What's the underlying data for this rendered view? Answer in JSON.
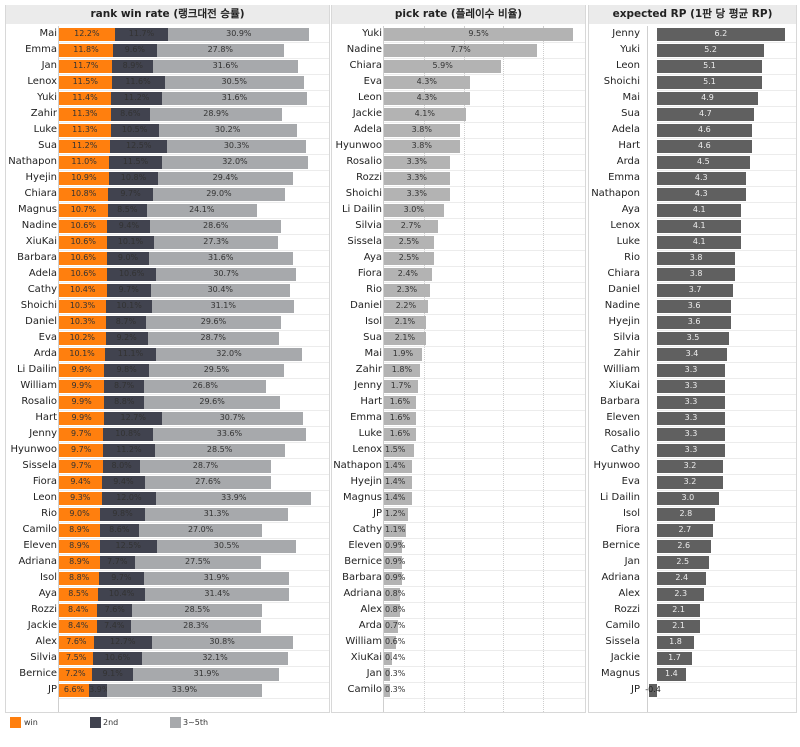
{
  "legend": [
    {
      "label": "win",
      "color": "#ff7f0e"
    },
    {
      "label": "2nd",
      "color": "#41434f"
    },
    {
      "label": "3~5th",
      "color": "#a7a9ac"
    }
  ],
  "chart_data": [
    {
      "type": "bar",
      "orientation": "horizontal",
      "stacked": true,
      "title": "rank win rate (랭크대전 승률)",
      "categories": [
        "Mai",
        "Emma",
        "Jan",
        "Lenox",
        "Yuki",
        "Zahir",
        "Luke",
        "Sua",
        "Nathapon",
        "Hyejin",
        "Chiara",
        "Magnus",
        "Nadine",
        "XiuKai",
        "Barbara",
        "Adela",
        "Cathy",
        "Shoichi",
        "Daniel",
        "Eva",
        "Arda",
        "Li Dailin",
        "William",
        "Rosalio",
        "Hart",
        "Jenny",
        "Hyunwoo",
        "Sissela",
        "Fiora",
        "Leon",
        "Rio",
        "Camilo",
        "Eleven",
        "Adriana",
        "Isol",
        "Aya",
        "Rozzi",
        "Jackie",
        "Alex",
        "Silvia",
        "Bernice",
        "JP"
      ],
      "series": [
        {
          "name": "win",
          "color": "#ff7f0e",
          "values": [
            12.2,
            11.8,
            11.7,
            11.5,
            11.4,
            11.3,
            11.3,
            11.2,
            11.0,
            10.9,
            10.8,
            10.7,
            10.6,
            10.6,
            10.6,
            10.6,
            10.4,
            10.3,
            10.3,
            10.2,
            10.1,
            9.9,
            9.9,
            9.9,
            9.9,
            9.7,
            9.7,
            9.7,
            9.4,
            9.3,
            9.0,
            8.9,
            8.9,
            8.9,
            8.8,
            8.5,
            8.4,
            8.4,
            7.6,
            7.5,
            7.2,
            6.6
          ]
        },
        {
          "name": "2nd",
          "color": "#41434f",
          "values": [
            11.7,
            9.6,
            8.9,
            11.6,
            11.2,
            8.6,
            10.5,
            12.5,
            11.5,
            10.8,
            9.7,
            8.5,
            9.4,
            10.1,
            9.0,
            10.6,
            9.7,
            10.1,
            8.7,
            9.2,
            11.1,
            9.8,
            8.7,
            8.8,
            12.7,
            10.8,
            11.2,
            8.0,
            9.4,
            12.0,
            9.8,
            8.6,
            12.5,
            7.7,
            9.7,
            10.4,
            7.6,
            7.4,
            12.7,
            10.6,
            9.1,
            3.9
          ]
        },
        {
          "name": "3~5th",
          "color": "#a7a9ac",
          "values": [
            30.9,
            27.8,
            31.6,
            30.5,
            31.6,
            28.9,
            30.2,
            30.3,
            32.0,
            29.4,
            29.0,
            24.1,
            28.6,
            27.3,
            31.6,
            30.7,
            30.4,
            31.1,
            29.6,
            28.7,
            32.0,
            29.5,
            26.8,
            29.6,
            30.7,
            33.6,
            28.5,
            28.7,
            27.6,
            33.9,
            31.3,
            27.0,
            30.5,
            27.5,
            31.9,
            31.4,
            28.5,
            28.3,
            30.8,
            32.1,
            31.9,
            33.9
          ]
        }
      ],
      "value_format": "percent",
      "legend_position": "bottom-left"
    },
    {
      "type": "bar",
      "orientation": "horizontal",
      "title": "pick rate (플레이수 비율)",
      "categories": [
        "Yuki",
        "Nadine",
        "Chiara",
        "Eva",
        "Leon",
        "Jackie",
        "Adela",
        "Hyunwoo",
        "Rosalio",
        "Rozzi",
        "Shoichi",
        "Li Dailin",
        "Silvia",
        "Sissela",
        "Aya",
        "Fiora",
        "Rio",
        "Daniel",
        "Isol",
        "Sua",
        "Mai",
        "Zahir",
        "Jenny",
        "Hart",
        "Emma",
        "Luke",
        "Lenox",
        "Nathapon",
        "Hyejin",
        "Magnus",
        "JP",
        "Cathy",
        "Eleven",
        "Bernice",
        "Barbara",
        "Adriana",
        "Alex",
        "Arda",
        "William",
        "XiuKai",
        "Jan",
        "Camilo"
      ],
      "values": [
        9.5,
        7.7,
        5.9,
        4.3,
        4.3,
        4.1,
        3.8,
        3.8,
        3.3,
        3.3,
        3.3,
        3.0,
        2.7,
        2.5,
        2.5,
        2.4,
        2.3,
        2.2,
        2.1,
        2.1,
        1.9,
        1.8,
        1.7,
        1.6,
        1.6,
        1.6,
        1.5,
        1.4,
        1.4,
        1.4,
        1.2,
        1.1,
        0.9,
        0.9,
        0.9,
        0.8,
        0.8,
        0.7,
        0.6,
        0.4,
        0.3,
        0.3
      ],
      "color": "#b3b3b3",
      "value_format": "percent",
      "grid": true
    },
    {
      "type": "bar",
      "orientation": "horizontal",
      "title": "expected RP (1판 당 평균 RP)",
      "categories": [
        "Jenny",
        "Yuki",
        "Leon",
        "Shoichi",
        "Mai",
        "Sua",
        "Adela",
        "Hart",
        "Arda",
        "Emma",
        "Nathapon",
        "Aya",
        "Lenox",
        "Luke",
        "Rio",
        "Chiara",
        "Daniel",
        "Nadine",
        "Hyejin",
        "Silvia",
        "Zahir",
        "William",
        "XiuKai",
        "Barbara",
        "Eleven",
        "Rosalio",
        "Cathy",
        "Hyunwoo",
        "Eva",
        "Li Dailin",
        "Isol",
        "Fiora",
        "Bernice",
        "Jan",
        "Adriana",
        "Alex",
        "Rozzi",
        "Camilo",
        "Sissela",
        "Jackie",
        "Magnus",
        "JP"
      ],
      "values": [
        6.2,
        5.2,
        5.1,
        5.1,
        4.9,
        4.7,
        4.6,
        4.6,
        4.5,
        4.3,
        4.3,
        4.1,
        4.1,
        4.1,
        3.8,
        3.8,
        3.7,
        3.6,
        3.6,
        3.5,
        3.4,
        3.3,
        3.3,
        3.3,
        3.3,
        3.3,
        3.3,
        3.2,
        3.2,
        3.0,
        2.8,
        2.7,
        2.6,
        2.5,
        2.4,
        2.3,
        2.1,
        2.1,
        1.8,
        1.7,
        1.4,
        -0.4
      ],
      "color": "#606060",
      "value_format": "decimal"
    }
  ]
}
